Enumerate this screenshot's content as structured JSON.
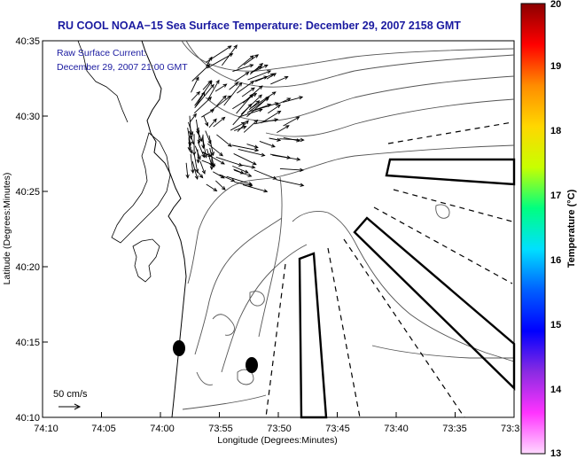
{
  "title": "RU COOL  NOAA−15  Sea Surface Temperature:  December 29, 2007 2158 GMT",
  "current_note": {
    "line1": "Raw Surface Current:",
    "line2": "December 29, 2007 21:00 GMT"
  },
  "axes": {
    "xlabel": "Longitude (Degrees:Minutes)",
    "ylabel": "Latitude (Degrees:Minutes)",
    "x_ticks": [
      "74:10",
      "74:05",
      "74:00",
      "73:55",
      "73:50",
      "73:45",
      "73:40",
      "73:35",
      "73:3"
    ],
    "y_ticks": [
      "40:35",
      "40:30",
      "40:25",
      "40:20",
      "40:15",
      "40:10"
    ]
  },
  "scale_label": "50 cm/s",
  "colorbar": {
    "title": "Temperature (°C)",
    "ticks": [
      "20",
      "19",
      "18",
      "17",
      "16",
      "15",
      "14",
      "13"
    ],
    "colors": [
      "#8b0000",
      "#ff0000",
      "#ff8c00",
      "#ffd700",
      "#c8ff00",
      "#00ff80",
      "#00e0ff",
      "#0060ff",
      "#0000ff",
      "#8a2be2",
      "#ff33ff",
      "#ffd9ff"
    ]
  }
}
